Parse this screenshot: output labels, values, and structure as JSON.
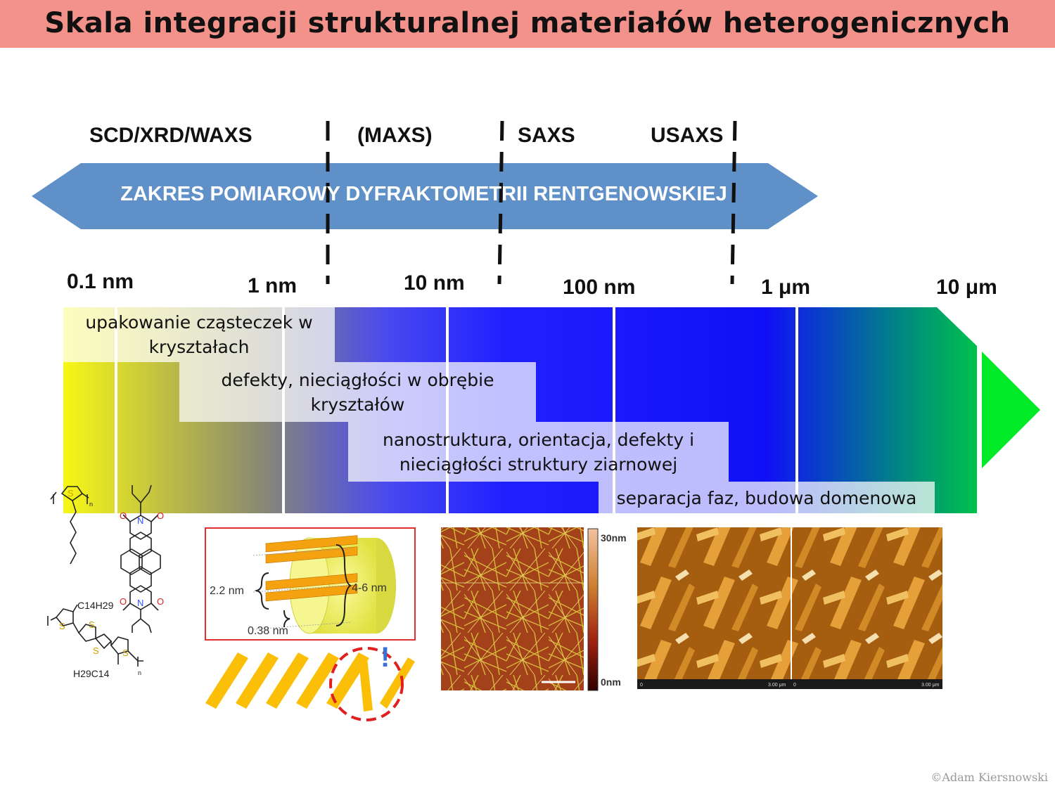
{
  "title": "Skala integracji strukturalnej materiałów heterogenicznych",
  "techniques": [
    {
      "name": "SCD/XRD/WAXS"
    },
    {
      "name": "(MAXS)"
    },
    {
      "name": "SAXS"
    },
    {
      "name": "USAXS"
    }
  ],
  "measurement_range_label": "ZAKRES POMIAROWY DYFRAKTOMETRII RENTGENOWSKIEJ",
  "scale_ticks": [
    {
      "prefix": "0.1",
      "unit": "nm"
    },
    {
      "prefix": "1",
      "unit": "nm"
    },
    {
      "prefix": "10",
      "unit": "nm"
    },
    {
      "prefix": "100",
      "unit": "nm"
    },
    {
      "prefix": "1",
      "unit": "μm"
    },
    {
      "prefix": "10",
      "unit": "μm"
    }
  ],
  "features": [
    {
      "line1": "upakowanie cząsteczek w",
      "line2": "kryształach"
    },
    {
      "line1": "defekty, nieciągłości w obrębie",
      "line2": "kryształów"
    },
    {
      "line1": "nanostruktura, orientacja, defekty i",
      "line2": "nieciągłości struktury ziarnowej"
    },
    {
      "line1": "separacja faz, budowa domenowa",
      "line2": ""
    }
  ],
  "chemistry": {
    "s_atom": "S",
    "n_atom": "N",
    "o_atom": "O",
    "sub_n": "n",
    "c14h29": "C14H29",
    "h29c14": "H29C14"
  },
  "model_figure": {
    "label_22": "2.2 nm",
    "label_46": "4-6 nm",
    "label_038": "0.38 nm",
    "exclamation": "!"
  },
  "afm": {
    "scale_max": "30nm",
    "scale_min": "0nm",
    "scan_size_left_end": "3.00 μm",
    "scan_start": "0",
    "scan_size_right_end": "3.00 μm"
  },
  "colors": {
    "title_bg": "#f2928a",
    "arrow_blue": "#6090c8",
    "bar_yellow": "#f5f516",
    "bar_blue": "#1e1ef8",
    "bar_green": "#00e828"
  },
  "copyright": "©Adam Kiersnowski"
}
